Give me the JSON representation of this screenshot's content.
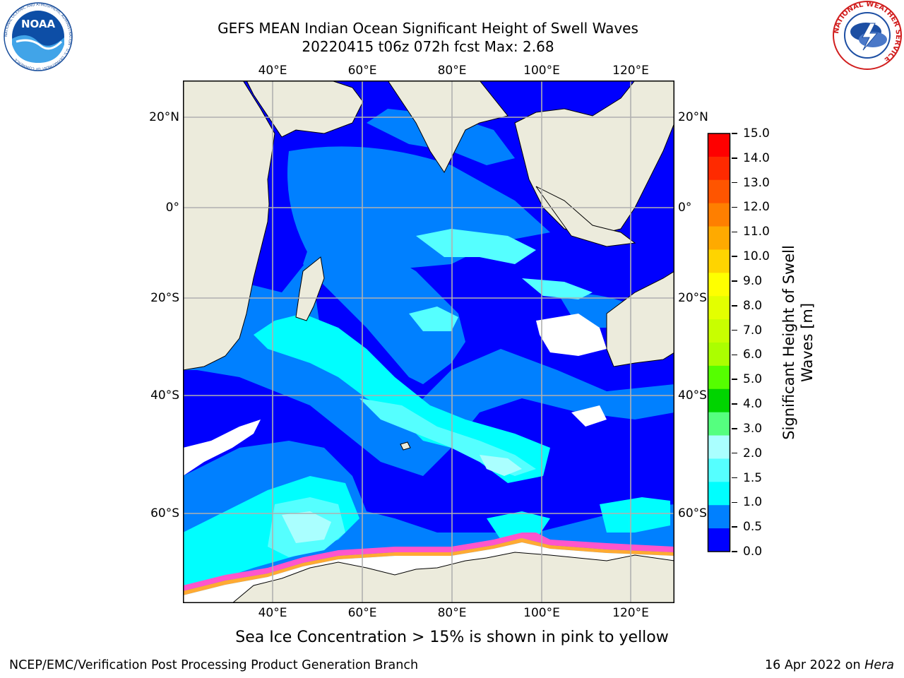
{
  "title": {
    "line1": "GEFS MEAN Indian Ocean Significant Height of Swell Waves",
    "line2": "20220415 t06z 072h fcst   Max: 2.68"
  },
  "map": {
    "lon_ticks": [
      "40°E",
      "60°E",
      "80°E",
      "100°E",
      "120°E"
    ],
    "lat_ticks": [
      "20°N",
      "0°",
      "20°S",
      "40°S",
      "60°S"
    ],
    "land_color": "#ecebdc",
    "grid_color": "#b0b0b0"
  },
  "colorbar": {
    "label_line1": "Significant Height of Swell",
    "label_line2": "Waves [m]",
    "ticks": [
      "15.0",
      "14.0",
      "13.0",
      "12.0",
      "11.0",
      "10.0",
      "9.0",
      "8.0",
      "7.0",
      "6.0",
      "5.0",
      "4.0",
      "3.0",
      "2.0",
      "1.5",
      "1.0",
      "0.5",
      "0.0"
    ],
    "colors": [
      "#fe0000",
      "#fe2a00",
      "#fe5500",
      "#fe7f00",
      "#feaa00",
      "#fed400",
      "#feff00",
      "#e3ff00",
      "#c8fe00",
      "#abfe00",
      "#55fe00",
      "#00d400",
      "#55ff7f",
      "#aaffff",
      "#55ffff",
      "#00fefe",
      "#0080ff",
      "#0000fe"
    ]
  },
  "ice_note": "Sea Ice Concentration > 15% is shown in pink to yellow",
  "footer": {
    "left": "NCEP/EMC/Verification Post Processing Product Generation Branch",
    "date": "16 Apr 2022 on ",
    "host": "Hera"
  },
  "logos": {
    "noaa": "NOAA",
    "noaa_ring": "NATIONAL OCEANIC AND ATMOSPHERIC ADMINISTRATION · U.S. DEPARTMENT OF COMMERCE",
    "nws_ring": "NATIONAL WEATHER SERVICE"
  }
}
